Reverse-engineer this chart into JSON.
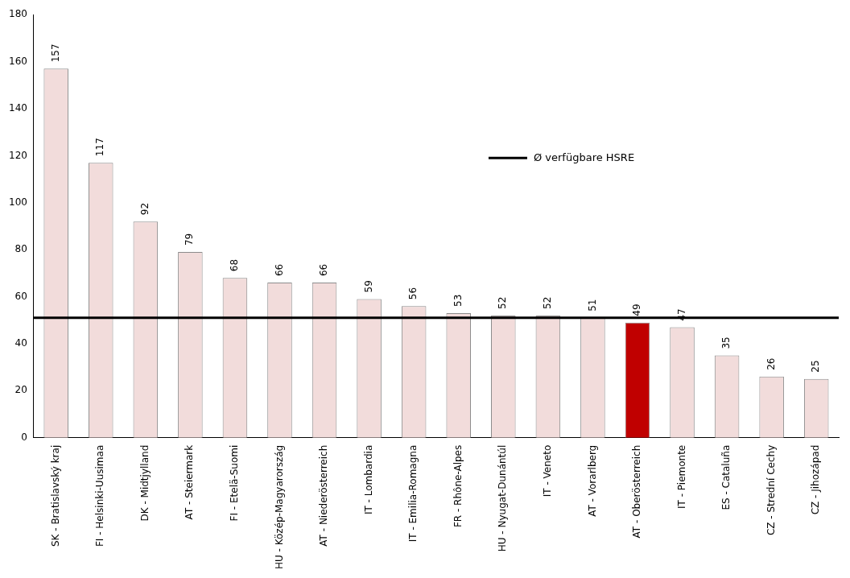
{
  "chart_data": {
    "type": "bar",
    "categories": [
      "SK - Bratislavský kraj",
      "FI - Helsinki-Uusimaa",
      "DK - Midtjylland",
      "AT - Steiermark",
      "FI - Etelä-Suomi",
      "HU - Közép-Magyarország",
      "AT - Niederösterreich",
      "IT - Lombardia",
      "IT - Emilia-Romagna",
      "FR - Rhône-Alpes",
      "HU - Nyugat-Dunántúl",
      "IT - Veneto",
      "AT - Vorarlberg",
      "AT - Oberösterreich",
      "IT - Piemonte",
      "ES - Cataluña",
      "CZ - Strední Cechy",
      "CZ - Jihozápad"
    ],
    "values": [
      157,
      117,
      92,
      79,
      68,
      66,
      66,
      59,
      56,
      53,
      52,
      52,
      51,
      49,
      47,
      35,
      26,
      25
    ],
    "colors": [
      "#f2dcdb",
      "#f2dcdb",
      "#f2dcdb",
      "#f2dcdb",
      "#f2dcdb",
      "#f2dcdb",
      "#f2dcdb",
      "#f2dcdb",
      "#f2dcdb",
      "#f2dcdb",
      "#f2dcdb",
      "#f2dcdb",
      "#f2dcdb",
      "#c00000",
      "#f2dcdb",
      "#f2dcdb",
      "#f2dcdb",
      "#f2dcdb"
    ],
    "ylim": [
      0,
      180
    ],
    "yticks": [
      0,
      20,
      40,
      60,
      80,
      100,
      120,
      140,
      160,
      180
    ],
    "grid": false,
    "data_labels": true,
    "ref_lines": [
      {
        "axis": "y",
        "value": 51,
        "label": "Ø verfügbare HSRE",
        "color": "#000000",
        "line_style": "solid"
      }
    ]
  }
}
